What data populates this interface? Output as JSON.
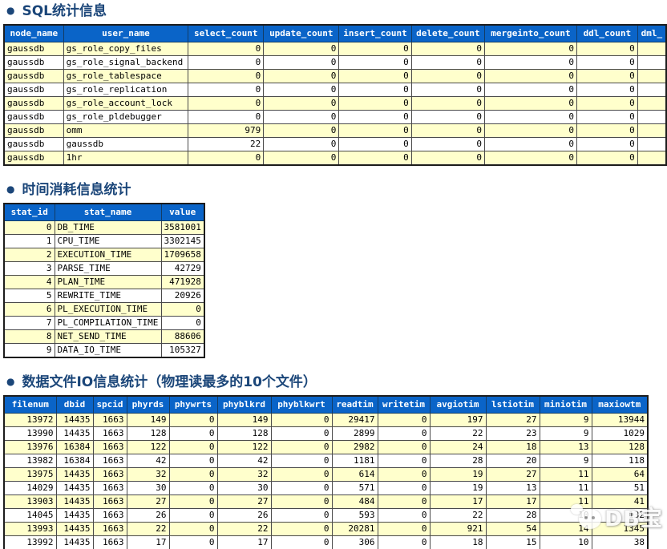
{
  "theme": {
    "header_bg": "#0A64C8",
    "header_text": "#FFFFFF",
    "header_border": "#123C66",
    "row_bg": "#FFFFFF",
    "row_alt_bg": "#FFFFCC",
    "heading_color": "#1B4679",
    "border_outer": "#1C1C1C",
    "border_inner": "#4A4A4A",
    "cell_text": "#000000"
  },
  "watermark": {
    "icon": "wechat-icon",
    "text": "DB宝"
  },
  "sections": [
    {
      "bullet": "●",
      "heading": "SQL统计信息",
      "table": {
        "columns": [
          "node_name",
          "user_name",
          "select_count",
          "update_count",
          "insert_count",
          "delete_count",
          "mergeinto_count",
          "ddl_count",
          "dml_"
        ],
        "rows": [
          [
            "gaussdb",
            "gs_role_copy_files",
            "0",
            "0",
            "0",
            "0",
            "0",
            "0",
            ""
          ],
          [
            "gaussdb",
            "gs_role_signal_backend",
            "0",
            "0",
            "0",
            "0",
            "0",
            "0",
            ""
          ],
          [
            "gaussdb",
            "gs_role_tablespace",
            "0",
            "0",
            "0",
            "0",
            "0",
            "0",
            ""
          ],
          [
            "gaussdb",
            "gs_role_replication",
            "0",
            "0",
            "0",
            "0",
            "0",
            "0",
            ""
          ],
          [
            "gaussdb",
            "gs_role_account_lock",
            "0",
            "0",
            "0",
            "0",
            "0",
            "0",
            ""
          ],
          [
            "gaussdb",
            "gs_role_pldebugger",
            "0",
            "0",
            "0",
            "0",
            "0",
            "0",
            ""
          ],
          [
            "gaussdb",
            "omm",
            "979",
            "0",
            "0",
            "0",
            "0",
            "0",
            ""
          ],
          [
            "gaussdb",
            "gaussdb",
            "22",
            "0",
            "0",
            "0",
            "0",
            "0",
            ""
          ],
          [
            "gaussdb",
            "1hr",
            "0",
            "0",
            "0",
            "0",
            "0",
            "0",
            ""
          ]
        ]
      }
    },
    {
      "bullet": "●",
      "heading": "时间消耗信息统计",
      "table": {
        "columns": [
          "stat_id",
          "stat_name",
          "value"
        ],
        "rows": [
          [
            "0",
            "DB_TIME",
            "3581001"
          ],
          [
            "1",
            "CPU_TIME",
            "3302145"
          ],
          [
            "2",
            "EXECUTION_TIME",
            "1709658"
          ],
          [
            "3",
            "PARSE_TIME",
            "42729"
          ],
          [
            "4",
            "PLAN_TIME",
            "471928"
          ],
          [
            "5",
            "REWRITE_TIME",
            "20926"
          ],
          [
            "6",
            "PL_EXECUTION_TIME",
            "0"
          ],
          [
            "7",
            "PL_COMPILATION_TIME",
            "0"
          ],
          [
            "8",
            "NET_SEND_TIME",
            "88606"
          ],
          [
            "9",
            "DATA_IO_TIME",
            "105327"
          ]
        ]
      }
    },
    {
      "bullet": "●",
      "heading": "数据文件IO信息统计（物理读最多的10个文件）",
      "table": {
        "columns": [
          "filenum",
          "dbid",
          "spcid",
          "phyrds",
          "phywrts",
          "phyblkrd",
          "phyblkwrt",
          "readtim",
          "writetim",
          "avgiotim",
          "lstiotim",
          "miniotim",
          "maxiowtm"
        ],
        "rows": [
          [
            "13972",
            "14435",
            "1663",
            "149",
            "0",
            "149",
            "0",
            "29417",
            "0",
            "197",
            "27",
            "9",
            "13944"
          ],
          [
            "13990",
            "14435",
            "1663",
            "128",
            "0",
            "128",
            "0",
            "2899",
            "0",
            "22",
            "23",
            "9",
            "1029"
          ],
          [
            "13976",
            "16384",
            "1663",
            "122",
            "0",
            "122",
            "0",
            "2982",
            "0",
            "24",
            "18",
            "13",
            "128"
          ],
          [
            "13982",
            "16384",
            "1663",
            "42",
            "0",
            "42",
            "0",
            "1181",
            "0",
            "28",
            "20",
            "9",
            "118"
          ],
          [
            "13975",
            "14435",
            "1663",
            "32",
            "0",
            "32",
            "0",
            "614",
            "0",
            "19",
            "27",
            "11",
            "64"
          ],
          [
            "14029",
            "14435",
            "1663",
            "30",
            "0",
            "30",
            "0",
            "571",
            "0",
            "19",
            "13",
            "11",
            "51"
          ],
          [
            "13903",
            "14435",
            "1663",
            "27",
            "0",
            "27",
            "0",
            "484",
            "0",
            "17",
            "17",
            "11",
            "41"
          ],
          [
            "14045",
            "14435",
            "1663",
            "26",
            "0",
            "26",
            "0",
            "593",
            "0",
            "22",
            "28",
            "10",
            "132"
          ],
          [
            "13993",
            "14435",
            "1663",
            "22",
            "0",
            "22",
            "0",
            "20281",
            "0",
            "921",
            "54",
            "14",
            "1345"
          ],
          [
            "13992",
            "14435",
            "1663",
            "17",
            "0",
            "17",
            "0",
            "306",
            "0",
            "18",
            "15",
            "10",
            "38"
          ]
        ]
      }
    }
  ]
}
